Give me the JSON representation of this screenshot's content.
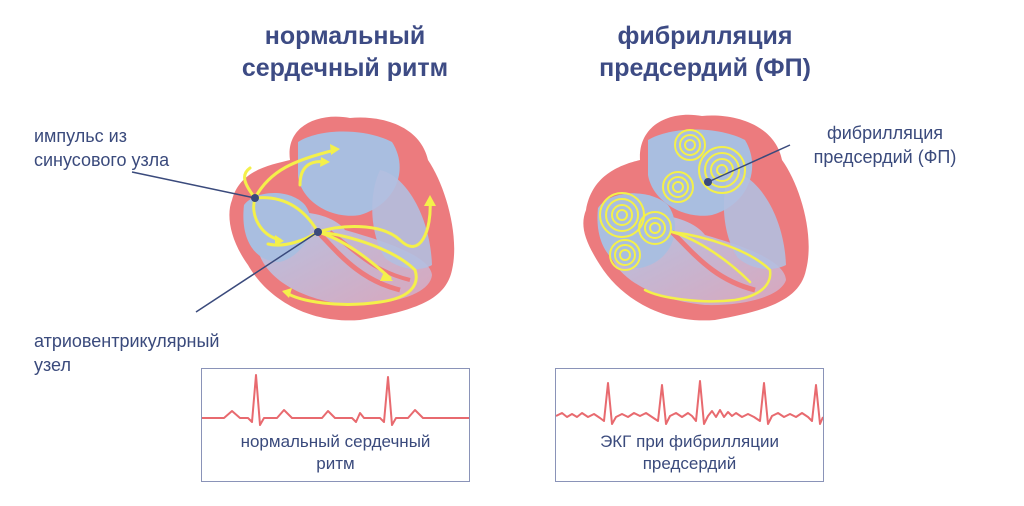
{
  "titles": {
    "normal": "нормальный\nсердечный ритм",
    "af": "фибрилляция\nпредсердий (ФП)"
  },
  "labels": {
    "sa_node": "импульс из\nсинусового узла",
    "av_node": "атриовентрикулярный\nузел",
    "af": "фибрилляция\nпредсердий (ФП)"
  },
  "ecg": {
    "normal_caption": "нормальный сердечный\nритм",
    "af_caption": "ЭКГ при фибрилляции\nпредсердий"
  },
  "colors": {
    "heart_outline": "#ec7b7e",
    "chamber": "#a9bee0",
    "impulse": "#f4f04a",
    "ecg_line": "#e86a6f",
    "text": "#3a4a7c"
  }
}
